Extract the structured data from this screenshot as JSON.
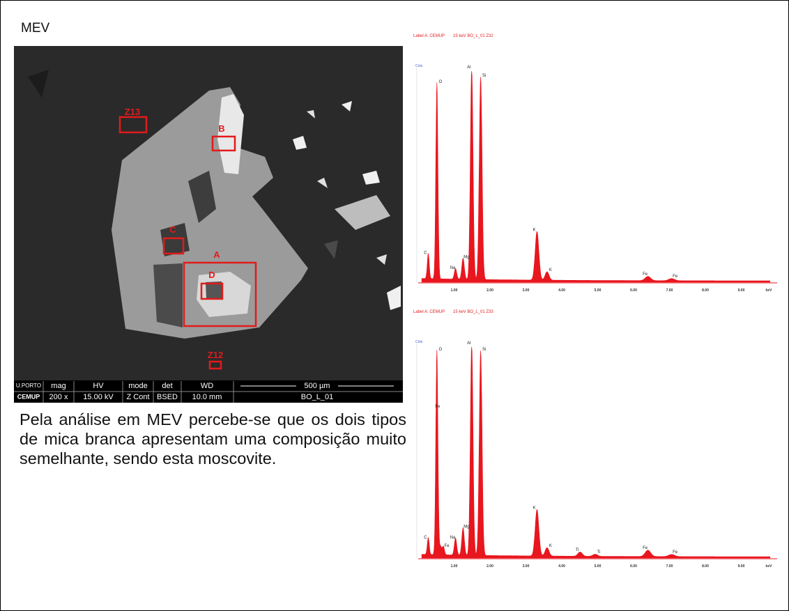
{
  "slide": {
    "title": "MEV",
    "text": "Pela análise em MEV percebe-se que os dois tipos de mica branca apresentam uma composição muito semelhante, sendo esta moscovite."
  },
  "sem_image": {
    "zone_labels": [
      "Z13",
      "B",
      "C",
      "A",
      "D",
      "Z12"
    ],
    "databar": {
      "logo_top": "U.PORTO",
      "logo_bottom": "CEMUP",
      "headers": [
        "mag",
        "HV",
        "mode",
        "det",
        "WD"
      ],
      "values": [
        "200 x",
        "15.00 kV",
        "Z Cont",
        "BSED",
        "10.0 mm"
      ],
      "scale": "500 µm",
      "sample": "BO_L_01"
    }
  },
  "spectra": [
    {
      "header": "Label A: CEMUP",
      "subheader": "15 keV  BO_L_01 Z32",
      "y_label": "Cnts",
      "peak_labels": [
        "C",
        "O",
        "Na",
        "Mg",
        "Al",
        "Si",
        "K",
        "K",
        "Fe",
        "Fe"
      ],
      "x_tick_labels": [
        "1.00",
        "2.00",
        "3.00",
        "4.00",
        "5.00",
        "6.00",
        "7.00",
        "8.00",
        "9.00",
        "keV"
      ]
    },
    {
      "header": "Label A: CEMUP",
      "subheader": "15 keV  BO_L_01 Z33",
      "y_label": "Cnts",
      "peak_labels": [
        "C",
        "O",
        "Fe",
        "Fe",
        "Na",
        "Mg",
        "Al",
        "Si",
        "K",
        "K",
        "Ti",
        "Ti",
        "Fe",
        "Fe"
      ],
      "x_tick_labels": [
        "1.00",
        "2.00",
        "3.00",
        "4.00",
        "5.00",
        "6.00",
        "7.00",
        "8.00",
        "9.00",
        "keV"
      ]
    }
  ]
}
